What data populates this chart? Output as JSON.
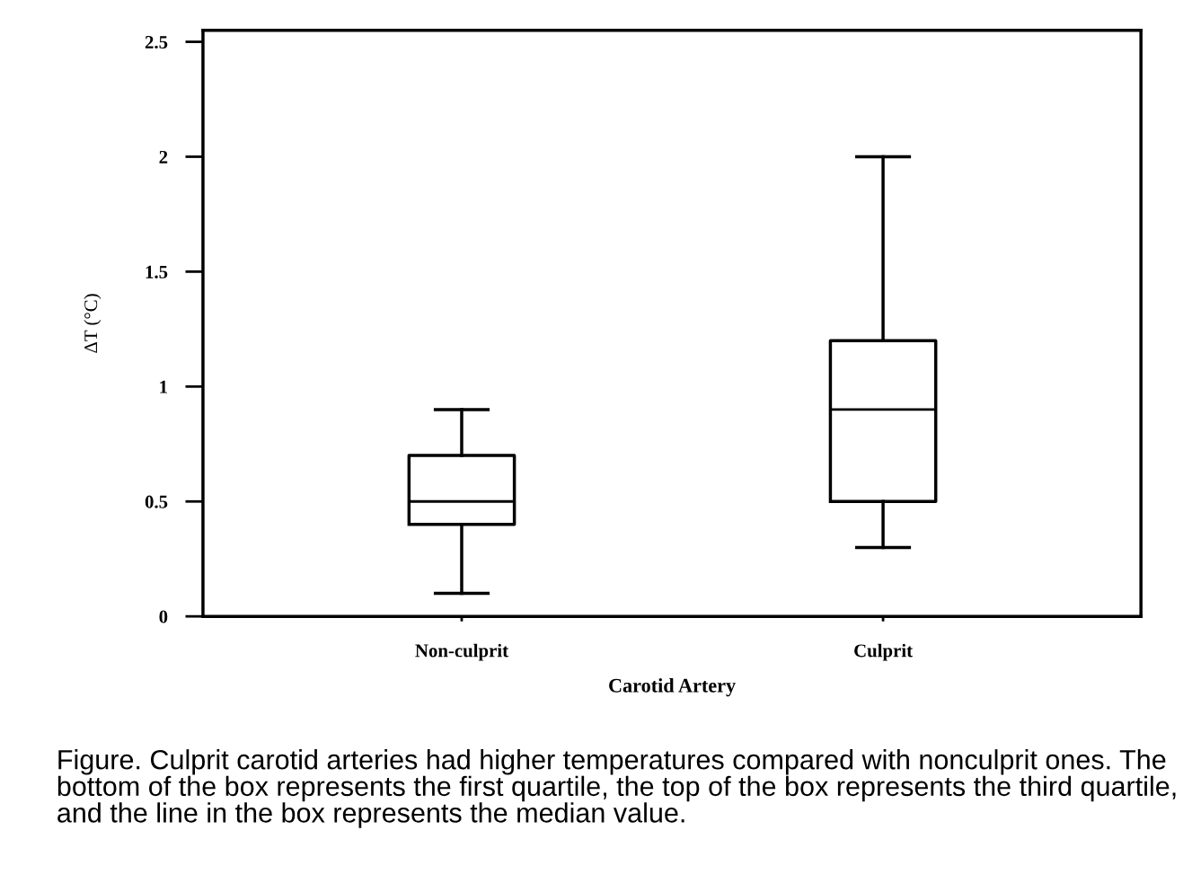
{
  "chart_data": {
    "type": "box",
    "categories": [
      "Non-culprit",
      "Culprit"
    ],
    "boxes": [
      {
        "low": 0.1,
        "q1": 0.4,
        "median": 0.5,
        "q3": 0.7,
        "high": 0.9
      },
      {
        "low": 0.3,
        "q1": 0.5,
        "median": 0.9,
        "q3": 1.2,
        "high": 2.0
      }
    ],
    "color": "#000000",
    "ylim": [
      0,
      2.55
    ],
    "yticks": [
      0,
      0.5,
      1,
      1.5,
      2,
      2.5
    ],
    "ylabel": "ΔT (°C)",
    "xlabel": "Carotid Artery",
    "grid": false,
    "legend": false,
    "annotations": [
      "Figure. Culprit carotid arteries had higher temperatures compared with nonculprit ones. The bottom of the box represents the first quartile, the top of the box represents the third quartile, and the line in the box represents the median value."
    ]
  }
}
